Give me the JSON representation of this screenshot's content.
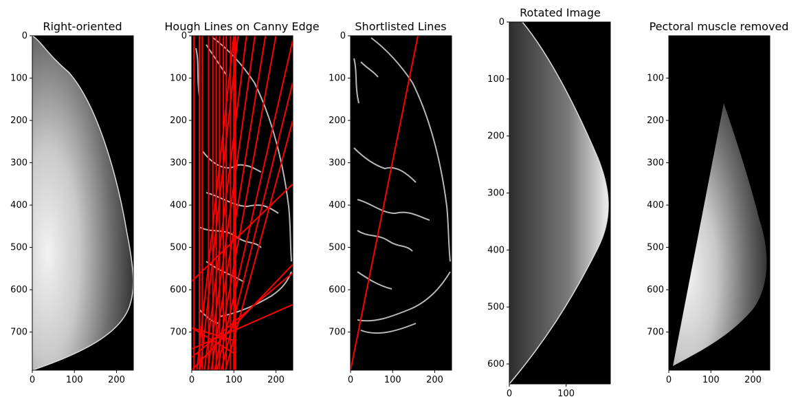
{
  "chart_data": [
    {
      "type": "image",
      "title": "Right-oriented",
      "xlim": [
        0,
        240
      ],
      "ylim": [
        790,
        0
      ],
      "xticks": [
        0,
        100,
        200
      ],
      "yticks": [
        0,
        100,
        200,
        300,
        400,
        500,
        600,
        700
      ]
    },
    {
      "type": "image",
      "title": "Hough Lines on Canny Edge",
      "xlim": [
        0,
        240
      ],
      "ylim": [
        790,
        0
      ],
      "xticks": [
        0,
        100,
        200
      ],
      "yticks": [
        0,
        100,
        200,
        300,
        400,
        500,
        600,
        700
      ],
      "line_color": "#ff0000",
      "lines": [
        [
          [
            5,
            0
          ],
          [
            5,
            790
          ]
        ],
        [
          [
            18,
            0
          ],
          [
            18,
            790
          ]
        ],
        [
          [
            25,
            0
          ],
          [
            25,
            790
          ]
        ],
        [
          [
            40,
            0
          ],
          [
            40,
            790
          ]
        ],
        [
          [
            50,
            0
          ],
          [
            50,
            790
          ]
        ],
        [
          [
            58,
            0
          ],
          [
            58,
            790
          ]
        ],
        [
          [
            66,
            0
          ],
          [
            66,
            790
          ]
        ],
        [
          [
            75,
            0
          ],
          [
            75,
            790
          ]
        ],
        [
          [
            82,
            0
          ],
          [
            82,
            790
          ]
        ],
        [
          [
            92,
            0
          ],
          [
            92,
            790
          ]
        ],
        [
          [
            100,
            0
          ],
          [
            100,
            790
          ]
        ],
        [
          [
            104,
            0
          ],
          [
            104,
            790
          ]
        ],
        [
          [
            100,
            0
          ],
          [
            12,
            790
          ]
        ],
        [
          [
            110,
            0
          ],
          [
            20,
            790
          ]
        ],
        [
          [
            130,
            0
          ],
          [
            30,
            790
          ]
        ],
        [
          [
            150,
            0
          ],
          [
            38,
            790
          ]
        ],
        [
          [
            175,
            0
          ],
          [
            46,
            790
          ]
        ],
        [
          [
            200,
            0
          ],
          [
            55,
            790
          ]
        ],
        [
          [
            240,
            10
          ],
          [
            60,
            790
          ]
        ],
        [
          [
            240,
            110
          ],
          [
            70,
            790
          ]
        ],
        [
          [
            240,
            200
          ],
          [
            80,
            790
          ]
        ],
        [
          [
            240,
            350
          ],
          [
            0,
            580
          ]
        ],
        [
          [
            240,
            540
          ],
          [
            0,
            790
          ]
        ],
        [
          [
            240,
            560
          ],
          [
            0,
            760
          ]
        ],
        [
          [
            240,
            635
          ],
          [
            0,
            740
          ]
        ],
        [
          [
            100,
            750
          ],
          [
            0,
            690
          ]
        ],
        [
          [
            0,
            690
          ],
          [
            100,
            720
          ]
        ]
      ]
    },
    {
      "type": "image",
      "title": "Shortlisted Lines",
      "xlim": [
        0,
        240
      ],
      "ylim": [
        790,
        0
      ],
      "xticks": [
        0,
        100,
        200
      ],
      "yticks": [
        0,
        100,
        200,
        300,
        400,
        500,
        600,
        700
      ],
      "line_color": "#ff0000",
      "lines": [
        [
          [
            160,
            0
          ],
          [
            0,
            790
          ]
        ]
      ]
    },
    {
      "type": "image",
      "title": "Rotated Image",
      "xlim": [
        0,
        178
      ],
      "ylim": [
        635,
        0
      ],
      "xticks": [
        0,
        100
      ],
      "yticks": [
        0,
        100,
        200,
        300,
        400,
        500,
        600
      ]
    },
    {
      "type": "image",
      "title": "Pectoral muscle removed",
      "xlim": [
        0,
        240
      ],
      "ylim": [
        790,
        0
      ],
      "xticks": [
        0,
        100,
        200
      ],
      "yticks": [
        100,
        200,
        300,
        400,
        500,
        600,
        700
      ]
    }
  ]
}
